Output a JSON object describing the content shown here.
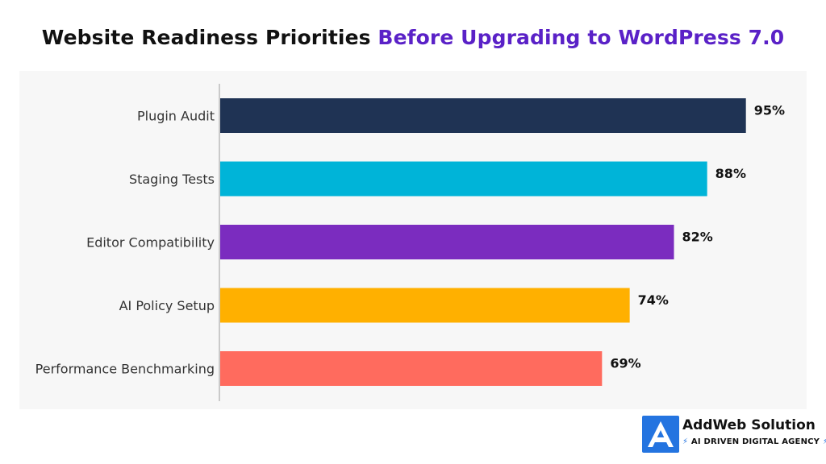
{
  "title": {
    "part1": "Website Readiness Priorities",
    "part2": "Before Upgrading to WordPress 7.0"
  },
  "colors": {
    "title_dark": "#111111",
    "title_accent": "#5a21c7",
    "panel_bg": "#f7f7f7",
    "brand_blue": "#2474e0"
  },
  "chart_data": {
    "type": "bar",
    "orientation": "horizontal",
    "title": "Website Readiness Priorities Before Upgrading to WordPress 7.0",
    "categories": [
      "Plugin Audit",
      "Staging Tests",
      "Editor Compatibility",
      "AI Policy Setup",
      "Performance Benchmarking"
    ],
    "values": [
      95,
      88,
      82,
      74,
      69
    ],
    "value_labels": [
      "95%",
      "88%",
      "82%",
      "74%",
      "69%"
    ],
    "bar_colors": [
      "#1f3354",
      "#00b4d8",
      "#7b2cbf",
      "#ffb000",
      "#ff6b5e"
    ],
    "xlim": [
      0,
      100
    ],
    "xlabel": "",
    "ylabel": "",
    "grid": false,
    "legend": "none"
  },
  "brand": {
    "name": "AddWeb Solution",
    "spark": "⚡",
    "tagline": "AI DRIVEN DIGITAL AGENCY",
    "tagline_spark": "⚡",
    "logo_icon": "addweb-logo-icon"
  }
}
